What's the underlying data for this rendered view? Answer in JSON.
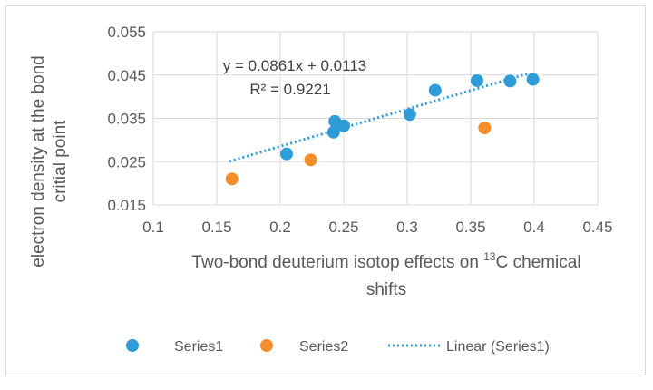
{
  "chart_data": {
    "type": "scatter",
    "title": "",
    "xlabel_main": "Two-bond deuterium isotop effects on ",
    "xlabel_sup": "13",
    "xlabel_after": "C chemical",
    "xlabel_line2": "shifts",
    "ylabel_line1": "electron density at the bond",
    "ylabel_line2": "critial point",
    "xlim": [
      0.1,
      0.45
    ],
    "ylim": [
      0.015,
      0.055
    ],
    "xticks": [
      "0.1",
      "0.15",
      "0.2",
      "0.25",
      "0.3",
      "0.35",
      "0.4",
      "0.45"
    ],
    "yticks": [
      "0.015",
      "0.025",
      "0.035",
      "0.045",
      "0.055"
    ],
    "grid": true,
    "series": [
      {
        "name": "Series1",
        "color": "#2e9cd6",
        "points": [
          {
            "x": 0.205,
            "y": 0.0268
          },
          {
            "x": 0.242,
            "y": 0.0318
          },
          {
            "x": 0.243,
            "y": 0.0343
          },
          {
            "x": 0.25,
            "y": 0.0333
          },
          {
            "x": 0.302,
            "y": 0.0359
          },
          {
            "x": 0.322,
            "y": 0.0415
          },
          {
            "x": 0.355,
            "y": 0.0437
          },
          {
            "x": 0.381,
            "y": 0.0436
          },
          {
            "x": 0.399,
            "y": 0.044
          }
        ]
      },
      {
        "name": "Series2",
        "color": "#f28e2b",
        "points": [
          {
            "x": 0.162,
            "y": 0.021
          },
          {
            "x": 0.224,
            "y": 0.0254
          },
          {
            "x": 0.361,
            "y": 0.0328
          }
        ]
      }
    ],
    "trendline": {
      "name": "Linear (Series1)",
      "color": "#2e9cd6",
      "slope": 0.0861,
      "intercept": 0.0113,
      "x_range": [
        0.16,
        0.395
      ],
      "equation": "y = 0.0861x + 0.0113",
      "r_squared": "R² = 0.9221"
    },
    "legend_position": "bottom"
  }
}
